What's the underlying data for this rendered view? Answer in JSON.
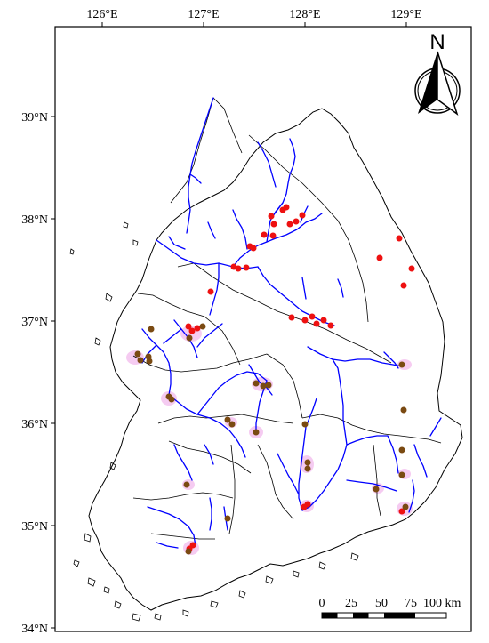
{
  "map": {
    "lon_labels": [
      "126°E",
      "127°E",
      "128°E",
      "129°E"
    ],
    "lat_labels": [
      "39°N",
      "38°N",
      "37°N",
      "36°N",
      "35°N",
      "34°N"
    ],
    "north_arrow": {
      "label": "N",
      "icon": "north-arrow-icon"
    },
    "scale_bar": {
      "ticks": [
        "0",
        "25",
        "50",
        "75"
      ],
      "last": "100 km"
    },
    "colors": {
      "boundary": "#000000",
      "river": "#0000ff",
      "site_red": "#ee1111",
      "site_brown": "#7a4a12",
      "halo": "#f5c6f0"
    }
  }
}
